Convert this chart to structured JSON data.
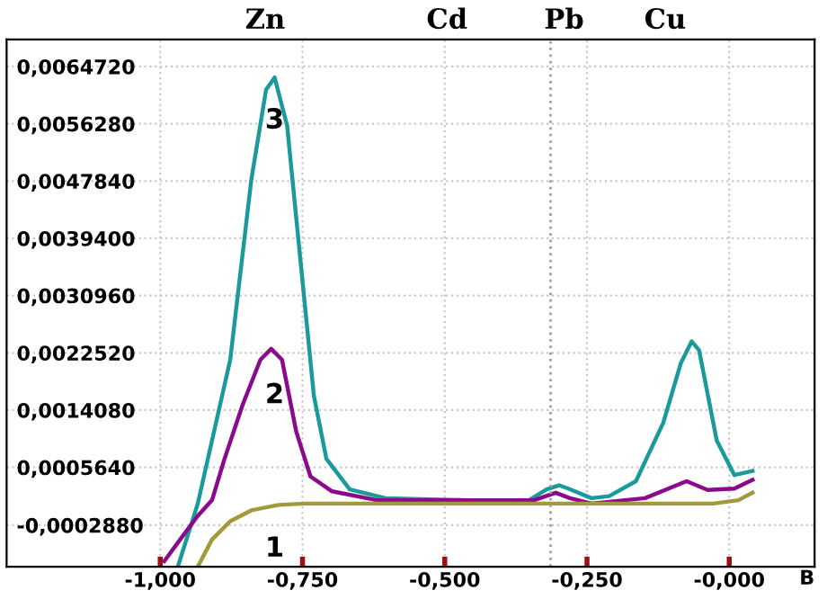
{
  "chart_data": {
    "type": "line",
    "xlabel": "В",
    "xlim": [
      -1.27,
      0.15
    ],
    "ylim": [
      -0.0009,
      0.00687
    ],
    "xticks": [
      {
        "value": -1.0,
        "label": "-1,000"
      },
      {
        "value": -0.75,
        "label": "-0,750"
      },
      {
        "value": -0.5,
        "label": "-0,500"
      },
      {
        "value": -0.25,
        "label": "-0,250"
      },
      {
        "value": 0.0,
        "label": "-0,000"
      }
    ],
    "yticks": [
      {
        "value": -0.000288,
        "label": "-0,0002880"
      },
      {
        "value": 0.000564,
        "label": "0,0005640"
      },
      {
        "value": 0.001408,
        "label": "0,0014080"
      },
      {
        "value": 0.002252,
        "label": "0,0022520"
      },
      {
        "value": 0.003096,
        "label": "0,0030960"
      },
      {
        "value": 0.00394,
        "label": "0,0039400"
      },
      {
        "value": 0.004784,
        "label": "0,0047840"
      },
      {
        "value": 0.005628,
        "label": "0,0056280"
      },
      {
        "value": 0.006472,
        "label": "0,0064720"
      }
    ],
    "ref_lines": [
      {
        "axis": "x",
        "value": -0.314,
        "color": "#a0a0a0",
        "line_style": "dotted"
      }
    ],
    "grid": true,
    "line_style": "solid",
    "marker": "none",
    "series": [
      {
        "name": "3",
        "color": "#1a9a9a",
        "x": [
          -0.969,
          -0.934,
          -0.877,
          -0.84,
          -0.814,
          -0.799,
          -0.777,
          -0.752,
          -0.73,
          -0.708,
          -0.667,
          -0.604,
          -0.462,
          -0.352,
          -0.321,
          -0.299,
          -0.28,
          -0.242,
          -0.211,
          -0.164,
          -0.116,
          -0.085,
          -0.066,
          -0.053,
          -0.022,
          0.009,
          0.041
        ],
        "values": [
          -0.0009,
          3e-05,
          0.00215,
          0.0048,
          0.00613,
          0.00631,
          0.0056,
          0.00348,
          0.00162,
          0.00069,
          0.00024,
          0.00011,
          8e-05,
          8e-05,
          0.00024,
          0.0003,
          0.00024,
          0.00011,
          0.00014,
          0.00036,
          0.00122,
          0.0021,
          0.00242,
          0.00229,
          0.00096,
          0.00045,
          0.00051
        ]
      },
      {
        "name": "2",
        "color": "#8b0a8b",
        "x": [
          -0.993,
          -0.965,
          -0.934,
          -0.909,
          -0.887,
          -0.855,
          -0.824,
          -0.805,
          -0.786,
          -0.761,
          -0.736,
          -0.698,
          -0.619,
          -0.343,
          -0.305,
          -0.28,
          -0.242,
          -0.148,
          -0.075,
          -0.038,
          0.009,
          0.041
        ],
        "values": [
          -0.00082,
          -0.0005,
          -0.00015,
          8e-05,
          0.00069,
          0.00149,
          0.00215,
          0.00231,
          0.00215,
          0.00109,
          0.00043,
          0.00021,
          8e-05,
          8e-05,
          0.00019,
          0.00011,
          3e-05,
          0.00011,
          0.00036,
          0.00023,
          0.00025,
          0.00038
        ]
      },
      {
        "name": "1",
        "color": "#a09a3a",
        "x": [
          -0.934,
          -0.909,
          -0.877,
          -0.84,
          -0.792,
          -0.745,
          -0.343,
          -0.028,
          0.016,
          0.041
        ],
        "values": [
          -0.0009,
          -0.0005,
          -0.00023,
          -7e-05,
          1e-05,
          3e-05,
          3e-05,
          3e-05,
          8e-05,
          0.00019
        ]
      }
    ],
    "annotations": [
      "Zn",
      "Cd",
      "Pb",
      "Cu"
    ]
  }
}
